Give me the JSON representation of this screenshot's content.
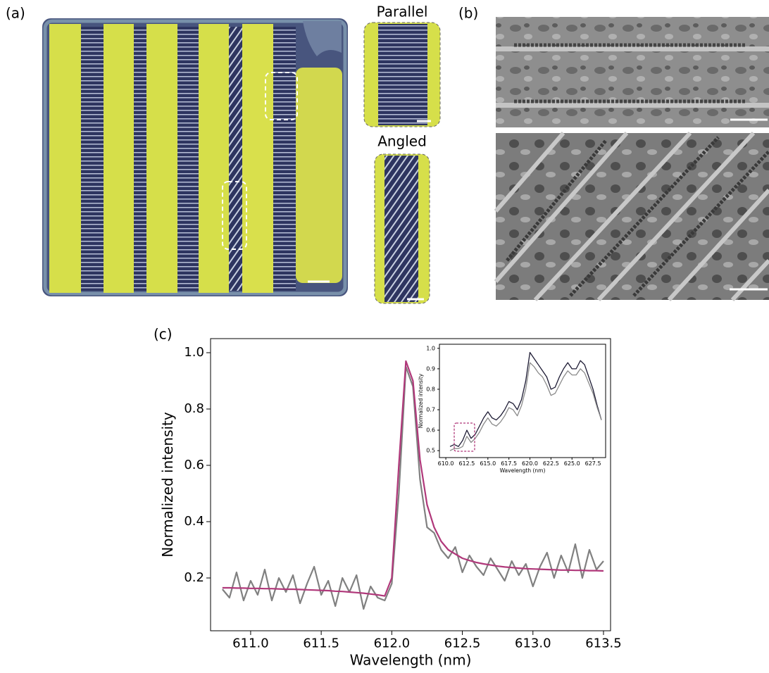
{
  "panels": {
    "a": {
      "label": "(a)",
      "insets": [
        "Parallel",
        "Angled"
      ]
    },
    "b": {
      "label": "(b)"
    },
    "c": {
      "label": "(c)"
    }
  },
  "chart_data": [
    {
      "type": "line",
      "xlabel": "Wavelength (nm)",
      "ylabel": "Normalized intensity",
      "xlim": [
        610.716,
        613.55
      ],
      "ylim": [
        0.0125,
        1.05
      ],
      "xticks": [
        {
          "value": 611.0,
          "label": "611.0"
        },
        {
          "value": 611.5,
          "label": "611.5"
        },
        {
          "value": 612.0,
          "label": "612.0"
        },
        {
          "value": 612.5,
          "label": "612.5"
        },
        {
          "value": 613.0,
          "label": "613.0"
        },
        {
          "value": 613.5,
          "label": "613.5"
        }
      ],
      "yticks": [
        {
          "value": 0.2,
          "label": "0.2"
        },
        {
          "value": 0.4,
          "label": "0.4"
        },
        {
          "value": 0.6,
          "label": "0.6"
        },
        {
          "value": 0.8,
          "label": "0.8"
        },
        {
          "value": 1.0,
          "label": "1.0"
        }
      ],
      "x": [
        610.8,
        610.85,
        610.9,
        610.95,
        611.0,
        611.05,
        611.1,
        611.15,
        611.2,
        611.25,
        611.3,
        611.35,
        611.4,
        611.45,
        611.5,
        611.55,
        611.6,
        611.65,
        611.7,
        611.75,
        611.8,
        611.85,
        611.9,
        611.95,
        612.0,
        612.05,
        612.1,
        612.15,
        612.2,
        612.25,
        612.3,
        612.35,
        612.4,
        612.45,
        612.5,
        612.55,
        612.6,
        612.65,
        612.7,
        612.75,
        612.8,
        612.85,
        612.9,
        612.95,
        613.0,
        613.05,
        613.1,
        613.15,
        613.2,
        613.25,
        613.3,
        613.35,
        613.4,
        613.45,
        613.5
      ],
      "series": [
        {
          "color": "#808080",
          "values": [
            0.16,
            0.13,
            0.22,
            0.12,
            0.19,
            0.14,
            0.23,
            0.12,
            0.2,
            0.15,
            0.21,
            0.11,
            0.18,
            0.24,
            0.14,
            0.19,
            0.1,
            0.2,
            0.15,
            0.21,
            0.09,
            0.17,
            0.13,
            0.12,
            0.18,
            0.5,
            0.95,
            0.88,
            0.55,
            0.38,
            0.36,
            0.3,
            0.27,
            0.31,
            0.22,
            0.28,
            0.24,
            0.21,
            0.27,
            0.23,
            0.19,
            0.26,
            0.21,
            0.25,
            0.17,
            0.24,
            0.29,
            0.2,
            0.28,
            0.22,
            0.32,
            0.2,
            0.3,
            0.23,
            0.26
          ]
        },
        {
          "color": "#b0387a",
          "values": [
            0.165,
            0.165,
            0.164,
            0.164,
            0.163,
            0.163,
            0.162,
            0.162,
            0.161,
            0.16,
            0.16,
            0.159,
            0.158,
            0.157,
            0.156,
            0.155,
            0.153,
            0.152,
            0.15,
            0.148,
            0.146,
            0.143,
            0.14,
            0.136,
            0.2,
            0.6,
            0.97,
            0.9,
            0.62,
            0.46,
            0.38,
            0.33,
            0.3,
            0.285,
            0.27,
            0.262,
            0.255,
            0.25,
            0.246,
            0.242,
            0.239,
            0.237,
            0.235,
            0.233,
            0.232,
            0.231,
            0.23,
            0.229,
            0.228,
            0.228,
            0.227,
            0.227,
            0.226,
            0.226,
            0.225
          ]
        }
      ]
    },
    {
      "type": "line",
      "xlabel": "Wavelength (nm)",
      "ylabel": "Normalized intensity",
      "xlim": [
        609.24,
        629.0
      ],
      "ylim": [
        0.466,
        1.02
      ],
      "xticks": [
        {
          "value": 610.0,
          "label": "610.0"
        },
        {
          "value": 612.5,
          "label": "612.5"
        },
        {
          "value": 615.0,
          "label": "615.0"
        },
        {
          "value": 617.5,
          "label": "617.5"
        },
        {
          "value": 620.0,
          "label": "620.0"
        },
        {
          "value": 622.5,
          "label": "622.5"
        },
        {
          "value": 625.0,
          "label": "625.0"
        },
        {
          "value": 627.5,
          "label": "627.5"
        }
      ],
      "yticks": [
        0.5,
        0.6,
        0.7,
        0.8,
        0.9,
        {
          "value": 1.0,
          "label": "1.0"
        }
      ],
      "x": [
        610.5,
        611.0,
        611.5,
        612.0,
        612.5,
        613.0,
        613.5,
        614.0,
        614.5,
        615.0,
        615.5,
        616.0,
        616.5,
        617.0,
        617.5,
        618.0,
        618.5,
        619.0,
        619.5,
        620.0,
        620.5,
        621.0,
        621.5,
        622.0,
        622.5,
        623.0,
        623.5,
        624.0,
        624.5,
        625.0,
        625.5,
        626.0,
        626.5,
        627.0,
        627.5,
        628.0,
        628.5
      ],
      "series": [
        {
          "color": "#1c1a33",
          "values": [
            0.52,
            0.53,
            0.52,
            0.55,
            0.6,
            0.56,
            0.58,
            0.62,
            0.66,
            0.69,
            0.66,
            0.65,
            0.67,
            0.7,
            0.74,
            0.73,
            0.7,
            0.75,
            0.84,
            0.98,
            0.95,
            0.92,
            0.89,
            0.86,
            0.8,
            0.81,
            0.86,
            0.9,
            0.93,
            0.9,
            0.9,
            0.94,
            0.92,
            0.86,
            0.8,
            0.72,
            0.65
          ]
        },
        {
          "color": "#8a8a8a",
          "values": [
            0.5,
            0.51,
            0.51,
            0.52,
            0.57,
            0.54,
            0.56,
            0.59,
            0.63,
            0.66,
            0.63,
            0.62,
            0.64,
            0.67,
            0.71,
            0.7,
            0.67,
            0.72,
            0.8,
            0.93,
            0.91,
            0.88,
            0.86,
            0.82,
            0.77,
            0.78,
            0.82,
            0.86,
            0.89,
            0.87,
            0.87,
            0.9,
            0.88,
            0.83,
            0.78,
            0.71,
            0.65
          ]
        }
      ]
    }
  ]
}
